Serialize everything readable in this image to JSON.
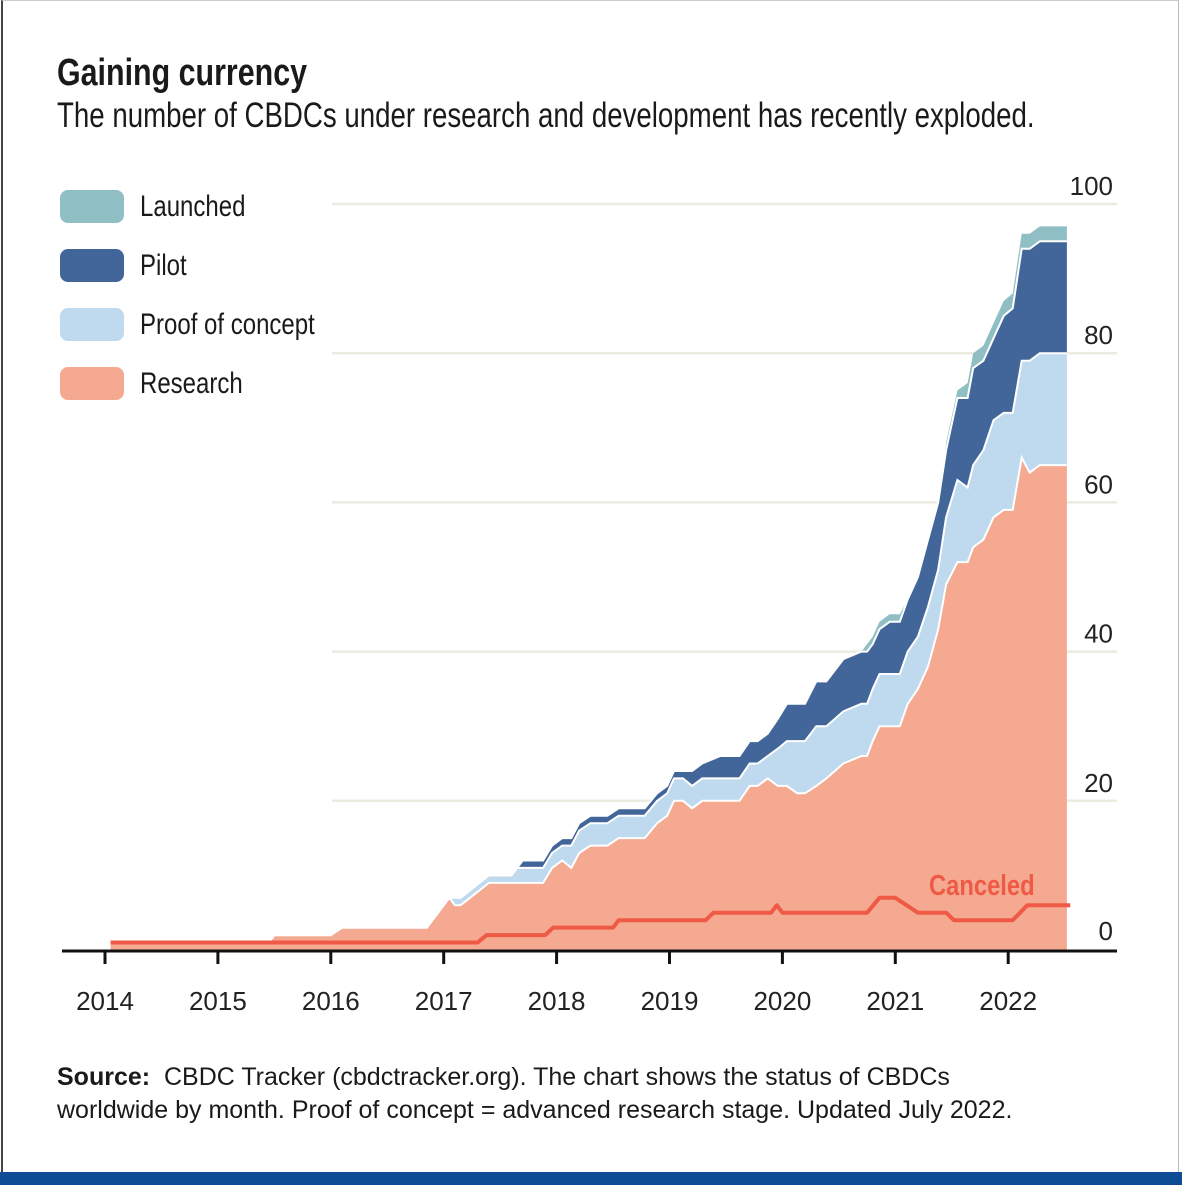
{
  "title": "Gaining currency",
  "subtitle": "The number of CBDCs under research and development has recently exploded.",
  "source_label": "Source:",
  "source_text_line1": "CBDC Tracker (cbdctracker.org). The chart shows the status of CBDCs",
  "source_text_line2": "worldwide by month. Proof of concept = advanced research stage. Updated July 2022.",
  "legend": [
    {
      "label": "Launched",
      "color": "#8fbfc5"
    },
    {
      "label": "Pilot",
      "color": "#426699"
    },
    {
      "label": "Proof of concept",
      "color": "#bfd9ee"
    },
    {
      "label": "Research",
      "color": "#f5a990"
    }
  ],
  "chart_data": {
    "type": "area",
    "stacked": true,
    "title": "Gaining currency",
    "xlabel": "",
    "ylabel": "",
    "xlim": [
      2014,
      2022.6
    ],
    "ylim": [
      0,
      100
    ],
    "x_ticks": [
      "2014",
      "2015",
      "2016",
      "2017",
      "2018",
      "2019",
      "2020",
      "2021",
      "2022"
    ],
    "y_ticks": [
      "0",
      "20",
      "40",
      "60",
      "80",
      "100"
    ],
    "y_axis_position": "right",
    "grid": "horizontal",
    "legend_position": "top-left",
    "x": [
      2014.05,
      2015.45,
      2015.5,
      2016.0,
      2016.1,
      2016.85,
      2017.05,
      2017.1,
      2017.15,
      2017.4,
      2017.6,
      2017.65,
      2017.7,
      2017.88,
      2017.96,
      2018.05,
      2018.13,
      2018.2,
      2018.3,
      2018.45,
      2018.55,
      2018.78,
      2018.89,
      2018.98,
      2019.04,
      2019.12,
      2019.2,
      2019.29,
      2019.45,
      2019.62,
      2019.71,
      2019.78,
      2019.87,
      2019.96,
      2020.04,
      2020.13,
      2020.2,
      2020.3,
      2020.39,
      2020.54,
      2020.7,
      2020.75,
      2020.8,
      2020.86,
      2020.95,
      2021.04,
      2021.11,
      2021.2,
      2021.29,
      2021.38,
      2021.45,
      2021.55,
      2021.64,
      2021.69,
      2021.78,
      2021.87,
      2021.96,
      2022.04,
      2022.12,
      2022.19,
      2022.28,
      2022.52
    ],
    "series": [
      {
        "name": "Research",
        "color": "#f5a990",
        "values": [
          1,
          1,
          2,
          2,
          3,
          3,
          7,
          6,
          6,
          9,
          9,
          9,
          9,
          9,
          11,
          12,
          11,
          13,
          14,
          14,
          15,
          15,
          17,
          18,
          20,
          20,
          19,
          20,
          20,
          20,
          22,
          22,
          23,
          22,
          22,
          21,
          21,
          22,
          23,
          25,
          26,
          26,
          28,
          30,
          30,
          30,
          33,
          35,
          38,
          43,
          49,
          52,
          52,
          54,
          55,
          58,
          59,
          59,
          66,
          64,
          65,
          65
        ]
      },
      {
        "name": "Proof of concept",
        "color": "#bfd9ee",
        "values": [
          0,
          0,
          0,
          0,
          0,
          0,
          0,
          1,
          1,
          1,
          1,
          2,
          2,
          2,
          2,
          2,
          3,
          3,
          3,
          3,
          3,
          3,
          3,
          3,
          3,
          3,
          3,
          3,
          3,
          3,
          3,
          3,
          3,
          5,
          6,
          7,
          7,
          8,
          7,
          7,
          7,
          7,
          7,
          7,
          7,
          7,
          7,
          7,
          8,
          8,
          9,
          11,
          10,
          11,
          12,
          13,
          13,
          13,
          13,
          15,
          15,
          15
        ]
      },
      {
        "name": "Pilot",
        "color": "#426699",
        "values": [
          0,
          0,
          0,
          0,
          0,
          0,
          0,
          0,
          0,
          0,
          0,
          0,
          1,
          1,
          1,
          1,
          1,
          1,
          1,
          1,
          1,
          1,
          1,
          1,
          1,
          1,
          2,
          2,
          3,
          3,
          3,
          3,
          3,
          4,
          5,
          5,
          5,
          6,
          6,
          7,
          7,
          7,
          6,
          6,
          7,
          7,
          7,
          8,
          9,
          9,
          9,
          11,
          12,
          13,
          12,
          11,
          13,
          14,
          15,
          15,
          15,
          15
        ]
      },
      {
        "name": "Launched",
        "color": "#8fbfc5",
        "values": [
          0,
          0,
          0,
          0,
          0,
          0,
          0,
          0,
          0,
          0,
          0,
          0,
          0,
          0,
          0,
          0,
          0,
          0,
          0,
          0,
          0,
          0,
          0,
          0,
          0,
          0,
          0,
          0,
          0,
          0,
          0,
          0,
          0,
          0,
          0,
          0,
          0,
          0,
          0,
          0,
          0,
          1,
          1,
          1,
          1,
          1,
          0,
          0,
          0,
          0,
          1,
          1,
          2,
          2,
          2,
          2,
          2,
          2,
          2,
          2,
          2,
          2
        ]
      }
    ],
    "canceled": {
      "name": "Canceled",
      "color": "#ef5a46",
      "points": [
        [
          2014.05,
          1
        ],
        [
          2017.3,
          1
        ],
        [
          2017.38,
          2
        ],
        [
          2017.9,
          2
        ],
        [
          2017.97,
          3
        ],
        [
          2018.5,
          3
        ],
        [
          2018.55,
          4
        ],
        [
          2019.32,
          4
        ],
        [
          2019.39,
          5
        ],
        [
          2019.9,
          5
        ],
        [
          2019.95,
          6
        ],
        [
          2020.0,
          5
        ],
        [
          2020.75,
          5
        ],
        [
          2020.86,
          7
        ],
        [
          2021.0,
          7
        ],
        [
          2021.2,
          5
        ],
        [
          2021.45,
          5
        ],
        [
          2021.52,
          4
        ],
        [
          2022.04,
          4
        ],
        [
          2022.17,
          6
        ],
        [
          2022.55,
          6
        ]
      ]
    },
    "colors": {
      "grid": "#ecebe0",
      "axis": "#111111"
    }
  }
}
